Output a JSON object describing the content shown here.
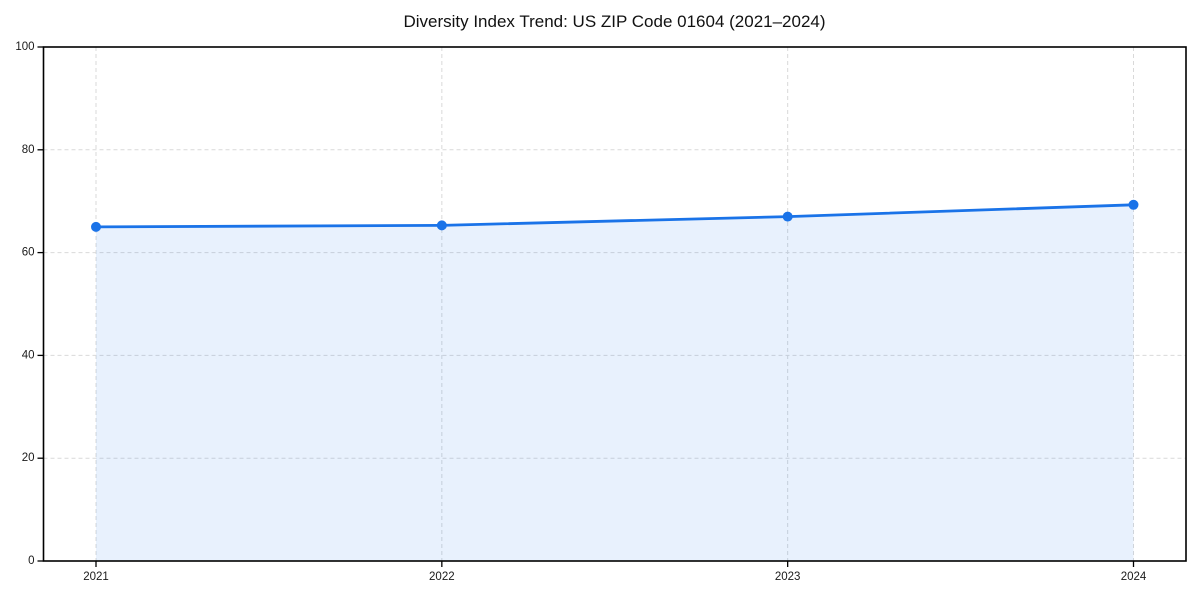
{
  "chart_data": {
    "type": "area",
    "title": "Diversity Index Trend: US ZIP Code 01604 (2021–2024)",
    "x": [
      "2021",
      "2022",
      "2023",
      "2024"
    ],
    "series": [
      {
        "name": "Diversity Index",
        "values": [
          65.0,
          65.3,
          67.0,
          69.3
        ]
      }
    ],
    "xlabel": "",
    "ylabel": "",
    "ylim": [
      0,
      100
    ],
    "yticks": [
      0,
      20,
      40,
      60,
      80,
      100
    ],
    "grid": true,
    "grid_style": "dashed",
    "legend_position": "none",
    "colors": {
      "line": "#1a73e8",
      "marker": "#1a73e8",
      "fill": "#1a73e8",
      "fill_opacity": 0.1,
      "grid": "#d9d9d9",
      "frame": "#000000",
      "tick_label": "#1a1a1a",
      "background": "#ffffff"
    }
  }
}
